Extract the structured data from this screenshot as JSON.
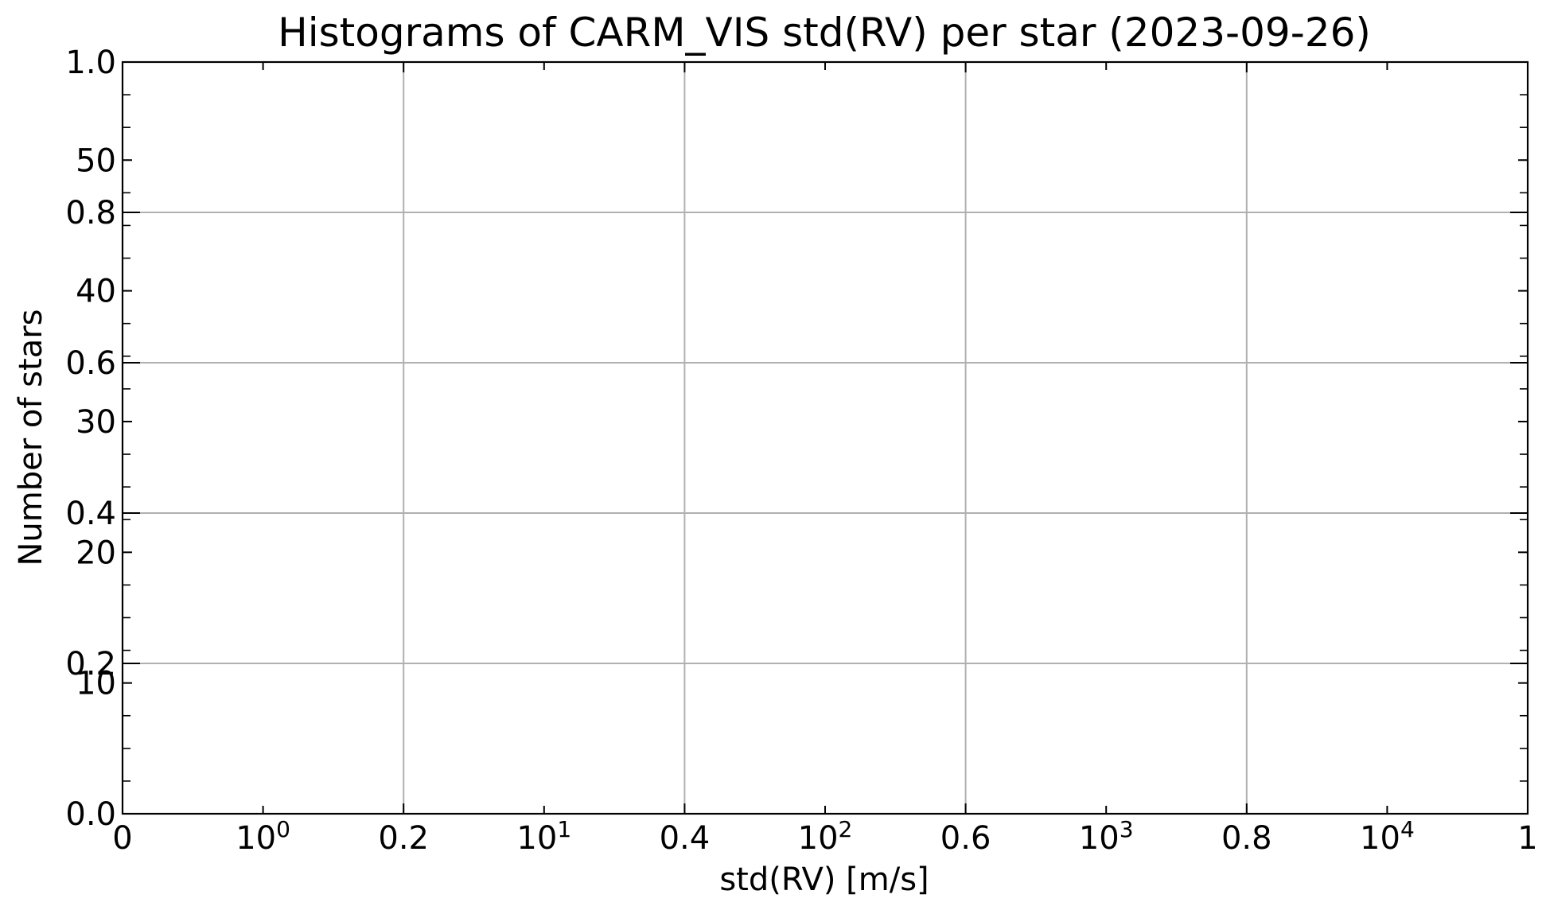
{
  "chart_data": {
    "type": "bar",
    "title": "Histograms of CARM_VIS std(RV) per star (2023-09-26)",
    "xlabel": "std(RV) [m/s]",
    "ylabel": "Number of stars",
    "series": [],
    "grid": true,
    "axes": {
      "primary_x": {
        "range": [
          0,
          1
        ],
        "ticks": [
          {
            "value": 0,
            "label": "0"
          },
          {
            "value": 0.2,
            "label": "0.2"
          },
          {
            "value": 0.4,
            "label": "0.4"
          },
          {
            "value": 0.6,
            "label": "0.6"
          },
          {
            "value": 0.8,
            "label": "0.8"
          },
          {
            "value": 1,
            "label": "1"
          }
        ]
      },
      "primary_y": {
        "range": [
          0,
          1
        ],
        "ticks": [
          {
            "value": 0,
            "label": "0.0"
          },
          {
            "value": 0.2,
            "label": "0.2"
          },
          {
            "value": 0.4,
            "label": "0.4"
          },
          {
            "value": 0.6,
            "label": "0.6"
          },
          {
            "value": 0.8,
            "label": "0.8"
          },
          {
            "value": 1,
            "label": "1.0"
          }
        ]
      },
      "secondary_x": {
        "scale": "log",
        "range_log10": [
          -0.5,
          4.5
        ],
        "ticks": [
          {
            "value": 1,
            "base": "10",
            "exp": "0"
          },
          {
            "value": 10,
            "base": "10",
            "exp": "1"
          },
          {
            "value": 100,
            "base": "10",
            "exp": "2"
          },
          {
            "value": 1000,
            "base": "10",
            "exp": "3"
          },
          {
            "value": 10000,
            "base": "10",
            "exp": "4"
          }
        ],
        "minor_ticks": [
          0.5,
          1.5,
          2.5,
          3.5,
          4.5
        ]
      },
      "secondary_y": {
        "range": [
          0,
          57.5
        ],
        "ticks": [
          {
            "value": 10,
            "label": "10"
          },
          {
            "value": 20,
            "label": "20"
          },
          {
            "value": 30,
            "label": "30"
          },
          {
            "value": 40,
            "label": "40"
          },
          {
            "value": 50,
            "label": "50"
          }
        ],
        "minor_step": 2.5
      }
    }
  }
}
